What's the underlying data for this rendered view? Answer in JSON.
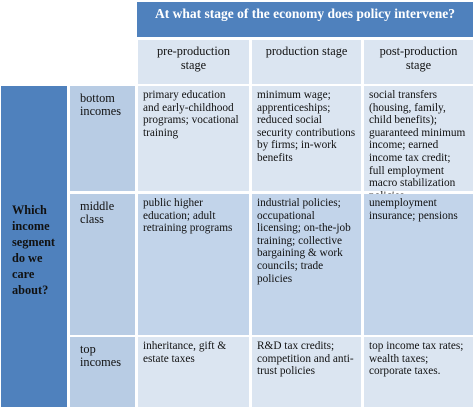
{
  "header": {
    "title": "At what stage of the economy does policy intervene?",
    "columns": [
      "pre-production stage",
      "production stage",
      "post-production stage"
    ]
  },
  "rows_header": "Which income segment do we care about?",
  "rows": [
    {
      "label": "bottom incomes",
      "cells": [
        "primary education and early-childhood programs; vocational training",
        "minimum wage; apprenticeships; reduced social security contributions by firms; in-work benefits",
        "social transfers (housing, family, child benefits); guaranteed minimum income; earned income tax credit; full employment macro stabilization policies"
      ]
    },
    {
      "label": "middle class",
      "cells": [
        "public higher education; adult retraining programs",
        "industrial policies; occupational licensing; on-the-job training; collective bargaining & work councils; trade policies",
        "unemployment insurance; pensions"
      ]
    },
    {
      "label": "top incomes",
      "cells": [
        "inheritance, gift & estate taxes",
        "R&D tax credits; competition and anti-trust policies",
        "top income tax rates; wealth taxes; corporate taxes."
      ]
    }
  ]
}
